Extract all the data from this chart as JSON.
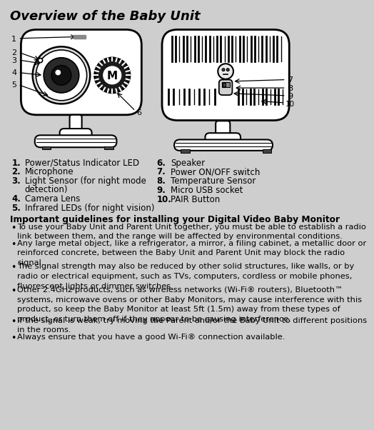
{
  "title": "Overview of the Baby Unit",
  "bg_color": "#cecece",
  "title_color": "#000000",
  "title_fontsize": 13,
  "guidelines_title": "Important guidelines for installing your Digital Video Baby Monitor",
  "guidelines": [
    "To use your Baby Unit and Parent Unit together, you must be able to establish a radio link between them, and the range will be affected by environmental conditions.",
    "Any large metal object, like a refrigerator, a mirror, a filing cabinet, a metallic door or reinforced concrete, between the Baby Unit and Parent Unit may block the radio signal.",
    "The signal strength may also be reduced by by other solid structures, like walls, or by radio or electrical equipment, such as TVs, computers, cordless or mobile phones, fluorescent lights or dimmer switches.",
    "Other 2.4GHz products, such as wireless networks (Wi-Fi® routers), Bluetooth™ systems, microwave ovens or other Baby Monitors, may cause interference with this product, so keep the Baby Monitor at least 5ft (1.5m) away from these types of product, or turn them off if they appear to be causing interference.",
    "If the signal is weak, try moving the Parent and/or the Baby Unit to different positions in the rooms.",
    "Always ensure that you have a good Wi-Fi® connection available."
  ]
}
